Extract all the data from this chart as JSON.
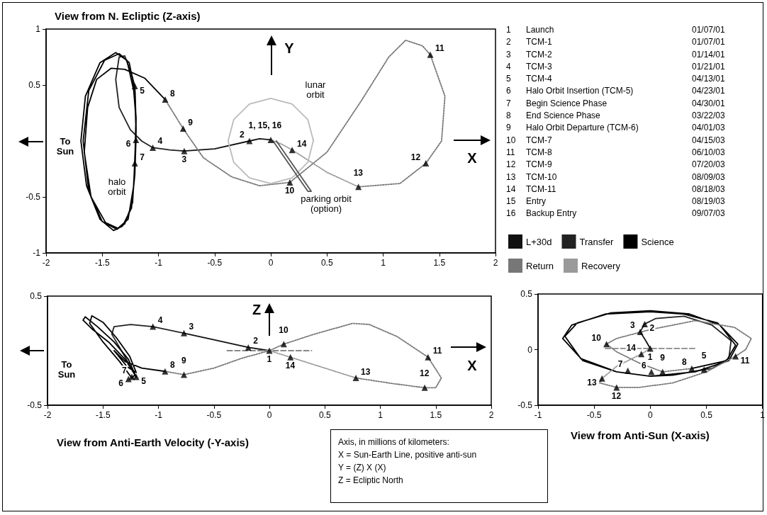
{
  "chart_data": [
    {
      "type": "line",
      "title": "View from N. Ecliptic (Z-axis)",
      "xlim": [
        -2,
        2
      ],
      "xticks": [
        -2,
        -1.5,
        -1,
        -0.5,
        0,
        0.5,
        1,
        1.5,
        2
      ],
      "ylim": [
        -1,
        1
      ],
      "yticks": [
        -1,
        -0.5,
        0.5,
        1
      ],
      "legend": "right",
      "series": [
        {
          "name": "L+30d",
          "color": "#111111",
          "x": [
            0,
            -0.1,
            -0.19,
            -0.5,
            -0.77
          ],
          "values": [
            0.01,
            0.02,
            0,
            -0.07,
            -0.09
          ]
        },
        {
          "name": "Transfer",
          "color": "#222222",
          "x": [
            -0.77,
            -0.9,
            -1.05,
            -1.15,
            -1.25,
            -1.35,
            -1.38,
            -1.35,
            -1.3,
            -1.24,
            -1.21,
            -1.2,
            -1.2
          ],
          "values": [
            -0.09,
            -0.08,
            -0.06,
            0,
            0.1,
            0.3,
            0.55,
            0.75,
            0.76,
            0.6,
            0.49,
            0.2,
            0.01
          ]
        },
        {
          "name": "Science",
          "color": "#000000",
          "x": [
            -1.2,
            -1.21,
            -1.24,
            -1.32,
            -1.4,
            -1.52,
            -1.64,
            -1.69,
            -1.65,
            -1.52,
            -1.38,
            -1.28,
            -1.22,
            -1.2,
            -1.21,
            -1.23,
            -1.3,
            -1.37,
            -1.5,
            -1.62,
            -1.67,
            -1.62,
            -1.48,
            -1.35,
            -1.26,
            -1.21,
            -1.2,
            -1.22,
            -1.27,
            -1.36,
            -1.47,
            -1.6,
            -1.66,
            -1.63,
            -1.55,
            -1.42,
            -1.3,
            -1.12,
            -0.94
          ],
          "values": [
            0.01,
            -0.3,
            -0.6,
            -0.76,
            -0.8,
            -0.7,
            -0.4,
            0,
            0.4,
            0.7,
            0.79,
            0.72,
            0.45,
            0.2,
            -0.2,
            -0.55,
            -0.74,
            -0.79,
            -0.72,
            -0.45,
            0,
            0.45,
            0.72,
            0.78,
            0.7,
            0.45,
            0.1,
            -0.4,
            -0.7,
            -0.78,
            -0.73,
            -0.5,
            -0.1,
            0.3,
            0.55,
            0.65,
            0.64,
            0.56,
            0.37
          ]
        },
        {
          "name": "Return",
          "color": "#777777",
          "line_style": "dotted",
          "x": [
            -0.94,
            -0.78,
            -0.6,
            -0.35,
            -0.1,
            0.17,
            0.5,
            0.8,
            1.05,
            1.2,
            1.35,
            1.42,
            1.55,
            1.52,
            1.38,
            1.15,
            0.78
          ],
          "values": [
            0.37,
            0.11,
            -0.15,
            -0.32,
            -0.4,
            -0.37,
            -0.1,
            0.35,
            0.75,
            0.9,
            0.85,
            0.77,
            0.4,
            0,
            -0.2,
            -0.38,
            -0.41
          ]
        },
        {
          "name": "Recovery",
          "color": "#9a9a9a",
          "line_style": "dotted",
          "x": [
            0.78,
            0.5,
            0.19,
            0.1,
            0
          ],
          "values": [
            -0.41,
            -0.28,
            -0.08,
            -0.03,
            0.01
          ]
        },
        {
          "color": "#bbbbbb",
          "x": [
            0.38,
            0.33,
            0.19,
            0,
            -0.19,
            -0.33,
            -0.38,
            -0.33,
            -0.19,
            0,
            0.19,
            0.33,
            0.38
          ],
          "values": [
            0,
            0.19,
            0.33,
            0.38,
            0.33,
            0.19,
            0,
            -0.19,
            -0.33,
            -0.38,
            -0.33,
            -0.19,
            0.01
          ]
        },
        {
          "color": "#555555",
          "x": [
            0.02,
            0.33,
            0.36,
            0.05
          ],
          "values": [
            0,
            -0.45,
            -0.45,
            0
          ]
        },
        {
          "type": "scatter",
          "marker": "triangle",
          "color": "#000000",
          "x": [
            -1.21,
            -0.94,
            -0.78,
            -1.2,
            -1.05,
            -0.77,
            -0.19,
            0,
            0.19,
            -1.21,
            0.17,
            0.78,
            1.38,
            1.42
          ],
          "values": [
            0.49,
            0.37,
            0.11,
            0.01,
            -0.06,
            -0.09,
            0,
            0.01,
            -0.08,
            -0.2,
            -0.37,
            -0.41,
            -0.2,
            0.77
          ]
        }
      ],
      "annotations": [
        "To Sun",
        "X",
        "Y",
        "halo orbit",
        "lunar orbit",
        "parking orbit (option)",
        "1\tLaunch",
        "2\tTCM-1",
        "3\tTCM-2",
        "4\tTCM-3",
        "5\tTCM-4",
        "6\tHalo Orbit Insertion (TCM-5)",
        "7\tBegin Science Phase",
        "8\tEnd Science Phase",
        "9\tHalo Orbit Departure (TCM-6)",
        "10\tTCM-7",
        "11\tTCM-8",
        "12\tTCM-9",
        "13\tTCM-10",
        "14\tTCM-11",
        "15\tEntry",
        "16\tBackup Entry",
        "01/07/01",
        "01/07/01",
        "01/14/01",
        "01/21/01",
        "04/13/01",
        "04/23/01",
        "04/30/01",
        "03/22/03",
        "04/01/03",
        "04/15/03",
        "06/10/03",
        "07/20/03",
        "08/09/03",
        "08/18/03",
        "08/19/03",
        "09/07/03",
        {
          "text": "5",
          "x": -1.21,
          "y": 0.49
        },
        {
          "text": "8",
          "x": -0.94,
          "y": 0.37
        },
        {
          "text": "9",
          "x": -0.78,
          "y": 0.11
        },
        {
          "text": "6",
          "x": -1.2,
          "y": 0.01
        },
        {
          "text": "4",
          "x": -1.05,
          "y": -0.06
        },
        {
          "text": "3",
          "x": -0.77,
          "y": -0.09
        },
        {
          "text": "2",
          "x": -0.19,
          "y": 0
        },
        {
          "text": "1, 15, 16",
          "x": 0,
          "y": 0.01
        },
        {
          "text": "14",
          "x": 0.19,
          "y": -0.08
        },
        {
          "text": "7",
          "x": -1.21,
          "y": -0.2
        },
        {
          "text": "10",
          "x": 0.17,
          "y": -0.37
        },
        {
          "text": "13",
          "x": 0.78,
          "y": -0.41
        },
        {
          "text": "12",
          "x": 1.38,
          "y": -0.2
        },
        {
          "text": "11",
          "x": 1.42,
          "y": 0.77
        }
      ]
    },
    {
      "type": "line",
      "title": "View from Anti-Earth Velocity (-Y-axis)",
      "xlim": [
        -2,
        2
      ],
      "xticks": [
        -2,
        -1.5,
        -1,
        -0.5,
        0,
        0.5,
        1,
        1.5,
        2
      ],
      "ylim": [
        -0.5,
        0.5
      ],
      "yticks": [
        -0.5,
        0.5
      ],
      "series": [
        {
          "color": "#111111",
          "x": [
            0,
            -0.19,
            -0.5,
            -0.77
          ],
          "values": [
            0,
            0.03,
            0.1,
            0.16
          ]
        },
        {
          "color": "#222222",
          "x": [
            -0.77,
            -1.05,
            -1.25,
            -1.4,
            -1.42,
            -1.35,
            -1.25,
            -1.2
          ],
          "values": [
            0.16,
            0.22,
            0.24,
            0.22,
            0.15,
            0.03,
            -0.15,
            -0.24
          ]
        },
        {
          "color": "#000000",
          "x": [
            -1.2,
            -1.3,
            -1.45,
            -1.6,
            -1.68,
            -1.66,
            -1.55,
            -1.4,
            -1.27,
            -1.21,
            -1.24,
            -1.35,
            -1.5,
            -1.62,
            -1.6,
            -1.5,
            -1.38,
            -1.26,
            -1.2,
            -1.28,
            -1.4,
            -1.3,
            -1.15,
            -0.94
          ],
          "values": [
            -0.24,
            -0.08,
            0.08,
            0.2,
            0.28,
            0.31,
            0.22,
            0.08,
            -0.08,
            -0.22,
            -0.25,
            -0.1,
            0.08,
            0.25,
            0.32,
            0.26,
            0.12,
            -0.05,
            -0.2,
            -0.15,
            0,
            -0.1,
            -0.16,
            -0.19
          ]
        },
        {
          "color": "#777777",
          "line_style": "dotted",
          "x": [
            -0.94,
            -0.77,
            -0.5,
            -0.25,
            0,
            0.13,
            0.4,
            0.75,
            0.9,
            1.15,
            1.43,
            1.55,
            1.5,
            1.4,
            1.1,
            0.78
          ],
          "values": [
            -0.19,
            -0.22,
            -0.16,
            -0.07,
            0,
            0.06,
            0.15,
            0.25,
            0.24,
            0.13,
            -0.06,
            -0.25,
            -0.34,
            -0.34,
            -0.3,
            -0.25
          ]
        },
        {
          "color": "#9a9a9a",
          "line_style": "dotted",
          "x": [
            0.78,
            0.5,
            0.19,
            0
          ],
          "values": [
            -0.25,
            -0.16,
            -0.06,
            0
          ]
        },
        {
          "color": "#888888",
          "line_style": "dashed",
          "x": [
            -0.38,
            0.38
          ],
          "values": [
            0,
            0
          ]
        },
        {
          "type": "scatter",
          "marker": "triangle",
          "color": "#000000",
          "x": [
            -1.05,
            -0.77,
            -0.19,
            0,
            0.13,
            0.19,
            1.43,
            0.78,
            1.4,
            -0.94,
            -0.77,
            -1.24,
            -1.27,
            -1.2
          ],
          "values": [
            0.22,
            0.16,
            0.03,
            0,
            0.06,
            -0.06,
            -0.06,
            -0.25,
            -0.34,
            -0.19,
            -0.22,
            -0.24,
            -0.26,
            -0.24
          ]
        }
      ],
      "annotations": [
        "To Sun",
        "X",
        "Z",
        "Axis, in millions of kilometers:",
        "X = Sun-Earth Line, positive anti-sun",
        "Y = (Z) X (X)",
        "Z = Ecliptic North",
        {
          "text": "4",
          "x": -1.05,
          "y": 0.22
        },
        {
          "text": "3",
          "x": -0.77,
          "y": 0.16
        },
        {
          "text": "2",
          "x": -0.19,
          "y": 0.03
        },
        {
          "text": "1",
          "x": 0,
          "y": 0
        },
        {
          "text": "10",
          "x": 0.13,
          "y": 0.06
        },
        {
          "text": "14",
          "x": 0.19,
          "y": -0.06
        },
        {
          "text": "11",
          "x": 1.43,
          "y": -0.06
        },
        {
          "text": "13",
          "x": 0.78,
          "y": -0.25
        },
        {
          "text": "12",
          "x": 1.4,
          "y": -0.34
        },
        {
          "text": "8",
          "x": -0.94,
          "y": -0.19
        },
        {
          "text": "9",
          "x": -0.77,
          "y": -0.22
        },
        {
          "text": "7",
          "x": -1.24,
          "y": -0.24
        },
        {
          "text": "6",
          "x": -1.27,
          "y": -0.26
        },
        {
          "text": "5",
          "x": -1.2,
          "y": -0.24
        }
      ]
    },
    {
      "type": "line",
      "title": "View from Anti-Sun (X-axis)",
      "xlim": [
        -1,
        1
      ],
      "xticks": [
        -1,
        -0.5,
        0,
        0.5,
        1
      ],
      "ylim": [
        -0.5,
        0.5
      ],
      "yticks": [
        -0.5,
        0,
        0.5
      ],
      "series": [
        {
          "color": "#111111",
          "x": [
            0,
            -0.04,
            -0.09
          ],
          "values": [
            0.01,
            0.08,
            0.16
          ]
        },
        {
          "color": "#222222",
          "x": [
            -0.09,
            -0.05,
            0.05,
            0.3,
            0.55,
            0.72,
            0.7,
            0.55,
            0.48
          ],
          "values": [
            0.16,
            0.23,
            0.28,
            0.3,
            0.22,
            0.08,
            -0.08,
            -0.17,
            -0.18
          ]
        },
        {
          "color": "#000000",
          "x": [
            0.48,
            0.2,
            0,
            -0.3,
            -0.6,
            -0.78,
            -0.7,
            -0.4,
            0,
            0.3,
            0.6,
            0.78,
            0.7,
            0.4,
            0,
            -0.3,
            -0.62,
            -0.76,
            -0.65,
            -0.35,
            0,
            0.35,
            0.62,
            0.76,
            0.68,
            0.37
          ],
          "values": [
            -0.18,
            -0.23,
            -0.24,
            -0.2,
            -0.1,
            0.1,
            0.22,
            0.32,
            0.34,
            0.32,
            0.24,
            0.05,
            -0.1,
            -0.2,
            -0.24,
            -0.2,
            -0.08,
            0.12,
            0.24,
            0.33,
            0.35,
            0.32,
            0.22,
            0.04,
            -0.1,
            -0.17
          ]
        },
        {
          "color": "#777777",
          "line_style": "dotted",
          "x": [
            0.37,
            0.11,
            -0.1,
            -0.3,
            -0.39,
            -0.3,
            0,
            0.4,
            0.75,
            0.9,
            0.85,
            0.76,
            0.5,
            0.2,
            -0.1,
            -0.3,
            -0.45,
            -0.43
          ],
          "values": [
            -0.17,
            -0.2,
            -0.12,
            -0.02,
            0.05,
            0.1,
            0.18,
            0.26,
            0.2,
            0.1,
            0,
            -0.06,
            -0.2,
            -0.3,
            -0.34,
            -0.34,
            -0.3,
            -0.26
          ]
        },
        {
          "color": "#9a9a9a",
          "line_style": "dotted",
          "x": [
            -0.43,
            -0.3,
            -0.08,
            0
          ],
          "values": [
            -0.26,
            -0.15,
            -0.04,
            0.01
          ]
        },
        {
          "color": "#888888",
          "line_style": "dashed",
          "x": [
            -0.4,
            0.4
          ],
          "values": [
            0.01,
            0.01
          ]
        },
        {
          "type": "scatter",
          "marker": "triangle",
          "color": "#000000",
          "x": [
            -0.09,
            -0.05,
            0,
            -0.39,
            -0.08,
            -0.43,
            -0.2,
            -0.3,
            0.01,
            0.11,
            0.37,
            0.48,
            0.76
          ],
          "values": [
            0.16,
            0.23,
            0.01,
            0.05,
            -0.04,
            -0.26,
            -0.19,
            -0.34,
            -0.2,
            -0.2,
            -0.17,
            -0.18,
            -0.06
          ]
        }
      ],
      "annotations": [
        {
          "text": "3",
          "x": -0.09,
          "y": 0.16
        },
        {
          "text": "2",
          "x": -0.05,
          "y": 0.23
        },
        {
          "text": "1",
          "x": 0,
          "y": 0.01
        },
        {
          "text": "10",
          "x": -0.39,
          "y": 0.05
        },
        {
          "text": "14",
          "x": -0.08,
          "y": -0.04
        },
        {
          "text": "13",
          "x": -0.43,
          "y": -0.26
        },
        {
          "text": "7",
          "x": -0.2,
          "y": -0.19
        },
        {
          "text": "12",
          "x": -0.3,
          "y": -0.34
        },
        {
          "text": "6",
          "x": 0.01,
          "y": -0.2
        },
        {
          "text": "9",
          "x": 0.11,
          "y": -0.2
        },
        {
          "text": "8",
          "x": 0.37,
          "y": -0.17
        },
        {
          "text": "5",
          "x": 0.48,
          "y": -0.18
        },
        {
          "text": "11",
          "x": 0.76,
          "y": -0.06
        }
      ]
    }
  ]
}
